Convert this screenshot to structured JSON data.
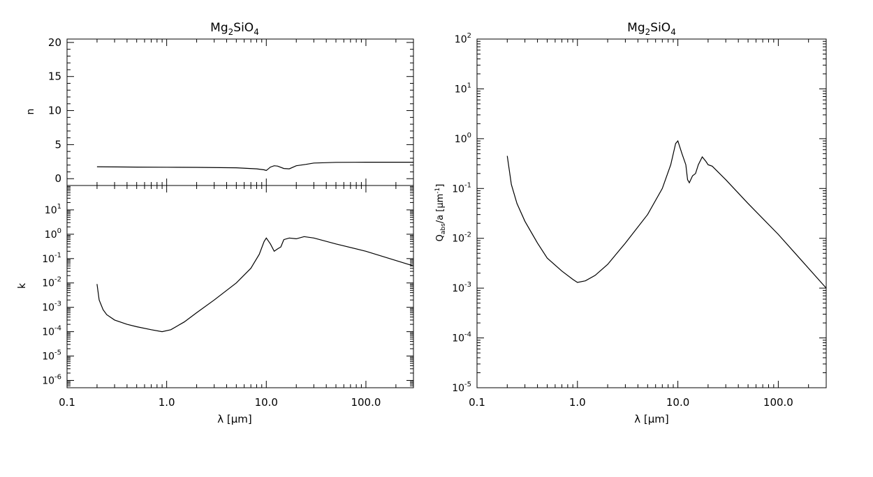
{
  "chart_data": [
    {
      "panel": "left",
      "type": "line",
      "title": "Mg2SiO4",
      "title_parts": {
        "main": "Mg",
        "sub1": "2",
        "mid": "SiO",
        "sub2": "4"
      },
      "xlabel": "λ [μm]",
      "x_scale": "log",
      "xlim": [
        0.1,
        300
      ],
      "x_tick_labels": [
        "0.1",
        "1.0",
        "10.0",
        "100.0"
      ],
      "subplots": [
        {
          "name": "n",
          "ylabel": "n",
          "y_scale": "linear",
          "ylim": [
            -1,
            20.5
          ],
          "y_tick_labels": [
            "0",
            "5",
            "10",
            "15",
            "20"
          ],
          "series": [
            {
              "x": [
                0.2,
                0.5,
                1,
                2,
                5,
                8,
                9.5,
                10,
                11,
                12,
                13,
                15,
                17,
                19,
                20,
                25,
                30,
                50,
                100,
                300
              ],
              "y": [
                1.75,
                1.7,
                1.68,
                1.66,
                1.6,
                1.45,
                1.3,
                1.2,
                1.7,
                1.9,
                1.85,
                1.5,
                1.45,
                1.75,
                1.9,
                2.1,
                2.3,
                2.4,
                2.42,
                2.42
              ]
            }
          ]
        },
        {
          "name": "k",
          "ylabel": "k",
          "y_scale": "log",
          "ylim": [
            5e-07,
            100
          ],
          "y_tick_labels": [
            {
              "base": "10",
              "exp": "-6"
            },
            {
              "base": "10",
              "exp": "-5"
            },
            {
              "base": "10",
              "exp": "-4"
            },
            {
              "base": "10",
              "exp": "-3"
            },
            {
              "base": "10",
              "exp": "-2"
            },
            {
              "base": "10",
              "exp": "-1"
            },
            {
              "base": "10",
              "exp": "0"
            },
            {
              "base": "10",
              "exp": "1"
            }
          ],
          "series": [
            {
              "x": [
                0.2,
                0.21,
                0.23,
                0.25,
                0.3,
                0.4,
                0.5,
                0.7,
                0.9,
                1.1,
                1.5,
                2,
                3,
                5,
                7,
                8.5,
                9.5,
                10,
                11,
                12,
                13,
                14,
                15,
                17,
                20,
                24,
                30,
                50,
                100,
                300
              ],
              "y": [
                0.009,
                0.002,
                0.0008,
                0.0005,
                0.0003,
                0.0002,
                0.00016,
                0.00012,
                0.0001,
                0.00012,
                0.00025,
                0.0006,
                0.002,
                0.01,
                0.04,
                0.15,
                0.5,
                0.7,
                0.4,
                0.2,
                0.25,
                0.3,
                0.6,
                0.7,
                0.65,
                0.8,
                0.7,
                0.4,
                0.2,
                0.05
              ]
            }
          ]
        }
      ]
    },
    {
      "panel": "right",
      "type": "line",
      "title": "Mg2SiO4",
      "title_parts": {
        "main": "Mg",
        "sub1": "2",
        "mid": "SiO",
        "sub2": "4"
      },
      "xlabel": "λ [μm]",
      "x_scale": "log",
      "xlim": [
        0.1,
        300
      ],
      "x_tick_labels": [
        "0.1",
        "1.0",
        "10.0",
        "100.0"
      ],
      "ylabel": "Qabs/a [μm-1]",
      "ylabel_parts": {
        "main": "Q",
        "sub": "abs",
        "rest": "/a [μm",
        "sup": "-1",
        "end": "]"
      },
      "y_scale": "log",
      "ylim": [
        1e-05,
        100
      ],
      "y_tick_labels": [
        {
          "base": "10",
          "exp": "-5"
        },
        {
          "base": "10",
          "exp": "-4"
        },
        {
          "base": "10",
          "exp": "-3"
        },
        {
          "base": "10",
          "exp": "-2"
        },
        {
          "base": "10",
          "exp": "-1"
        },
        {
          "base": "10",
          "exp": "0"
        },
        {
          "base": "10",
          "exp": "1"
        },
        {
          "base": "10",
          "exp": "2"
        }
      ],
      "series": [
        {
          "x": [
            0.2,
            0.22,
            0.25,
            0.3,
            0.4,
            0.5,
            0.7,
            0.9,
            1.0,
            1.2,
            1.5,
            2,
            3,
            5,
            7,
            8.5,
            9.5,
            10,
            11,
            12,
            12.5,
            13,
            14,
            15,
            16,
            17.5,
            19,
            20,
            22,
            30,
            50,
            100,
            300
          ],
          "y": [
            0.45,
            0.12,
            0.05,
            0.022,
            0.008,
            0.004,
            0.0022,
            0.0015,
            0.0013,
            0.0014,
            0.0018,
            0.003,
            0.008,
            0.03,
            0.1,
            0.3,
            0.8,
            0.9,
            0.5,
            0.3,
            0.15,
            0.13,
            0.18,
            0.2,
            0.3,
            0.43,
            0.35,
            0.3,
            0.28,
            0.15,
            0.05,
            0.012,
            0.001
          ]
        }
      ]
    }
  ]
}
